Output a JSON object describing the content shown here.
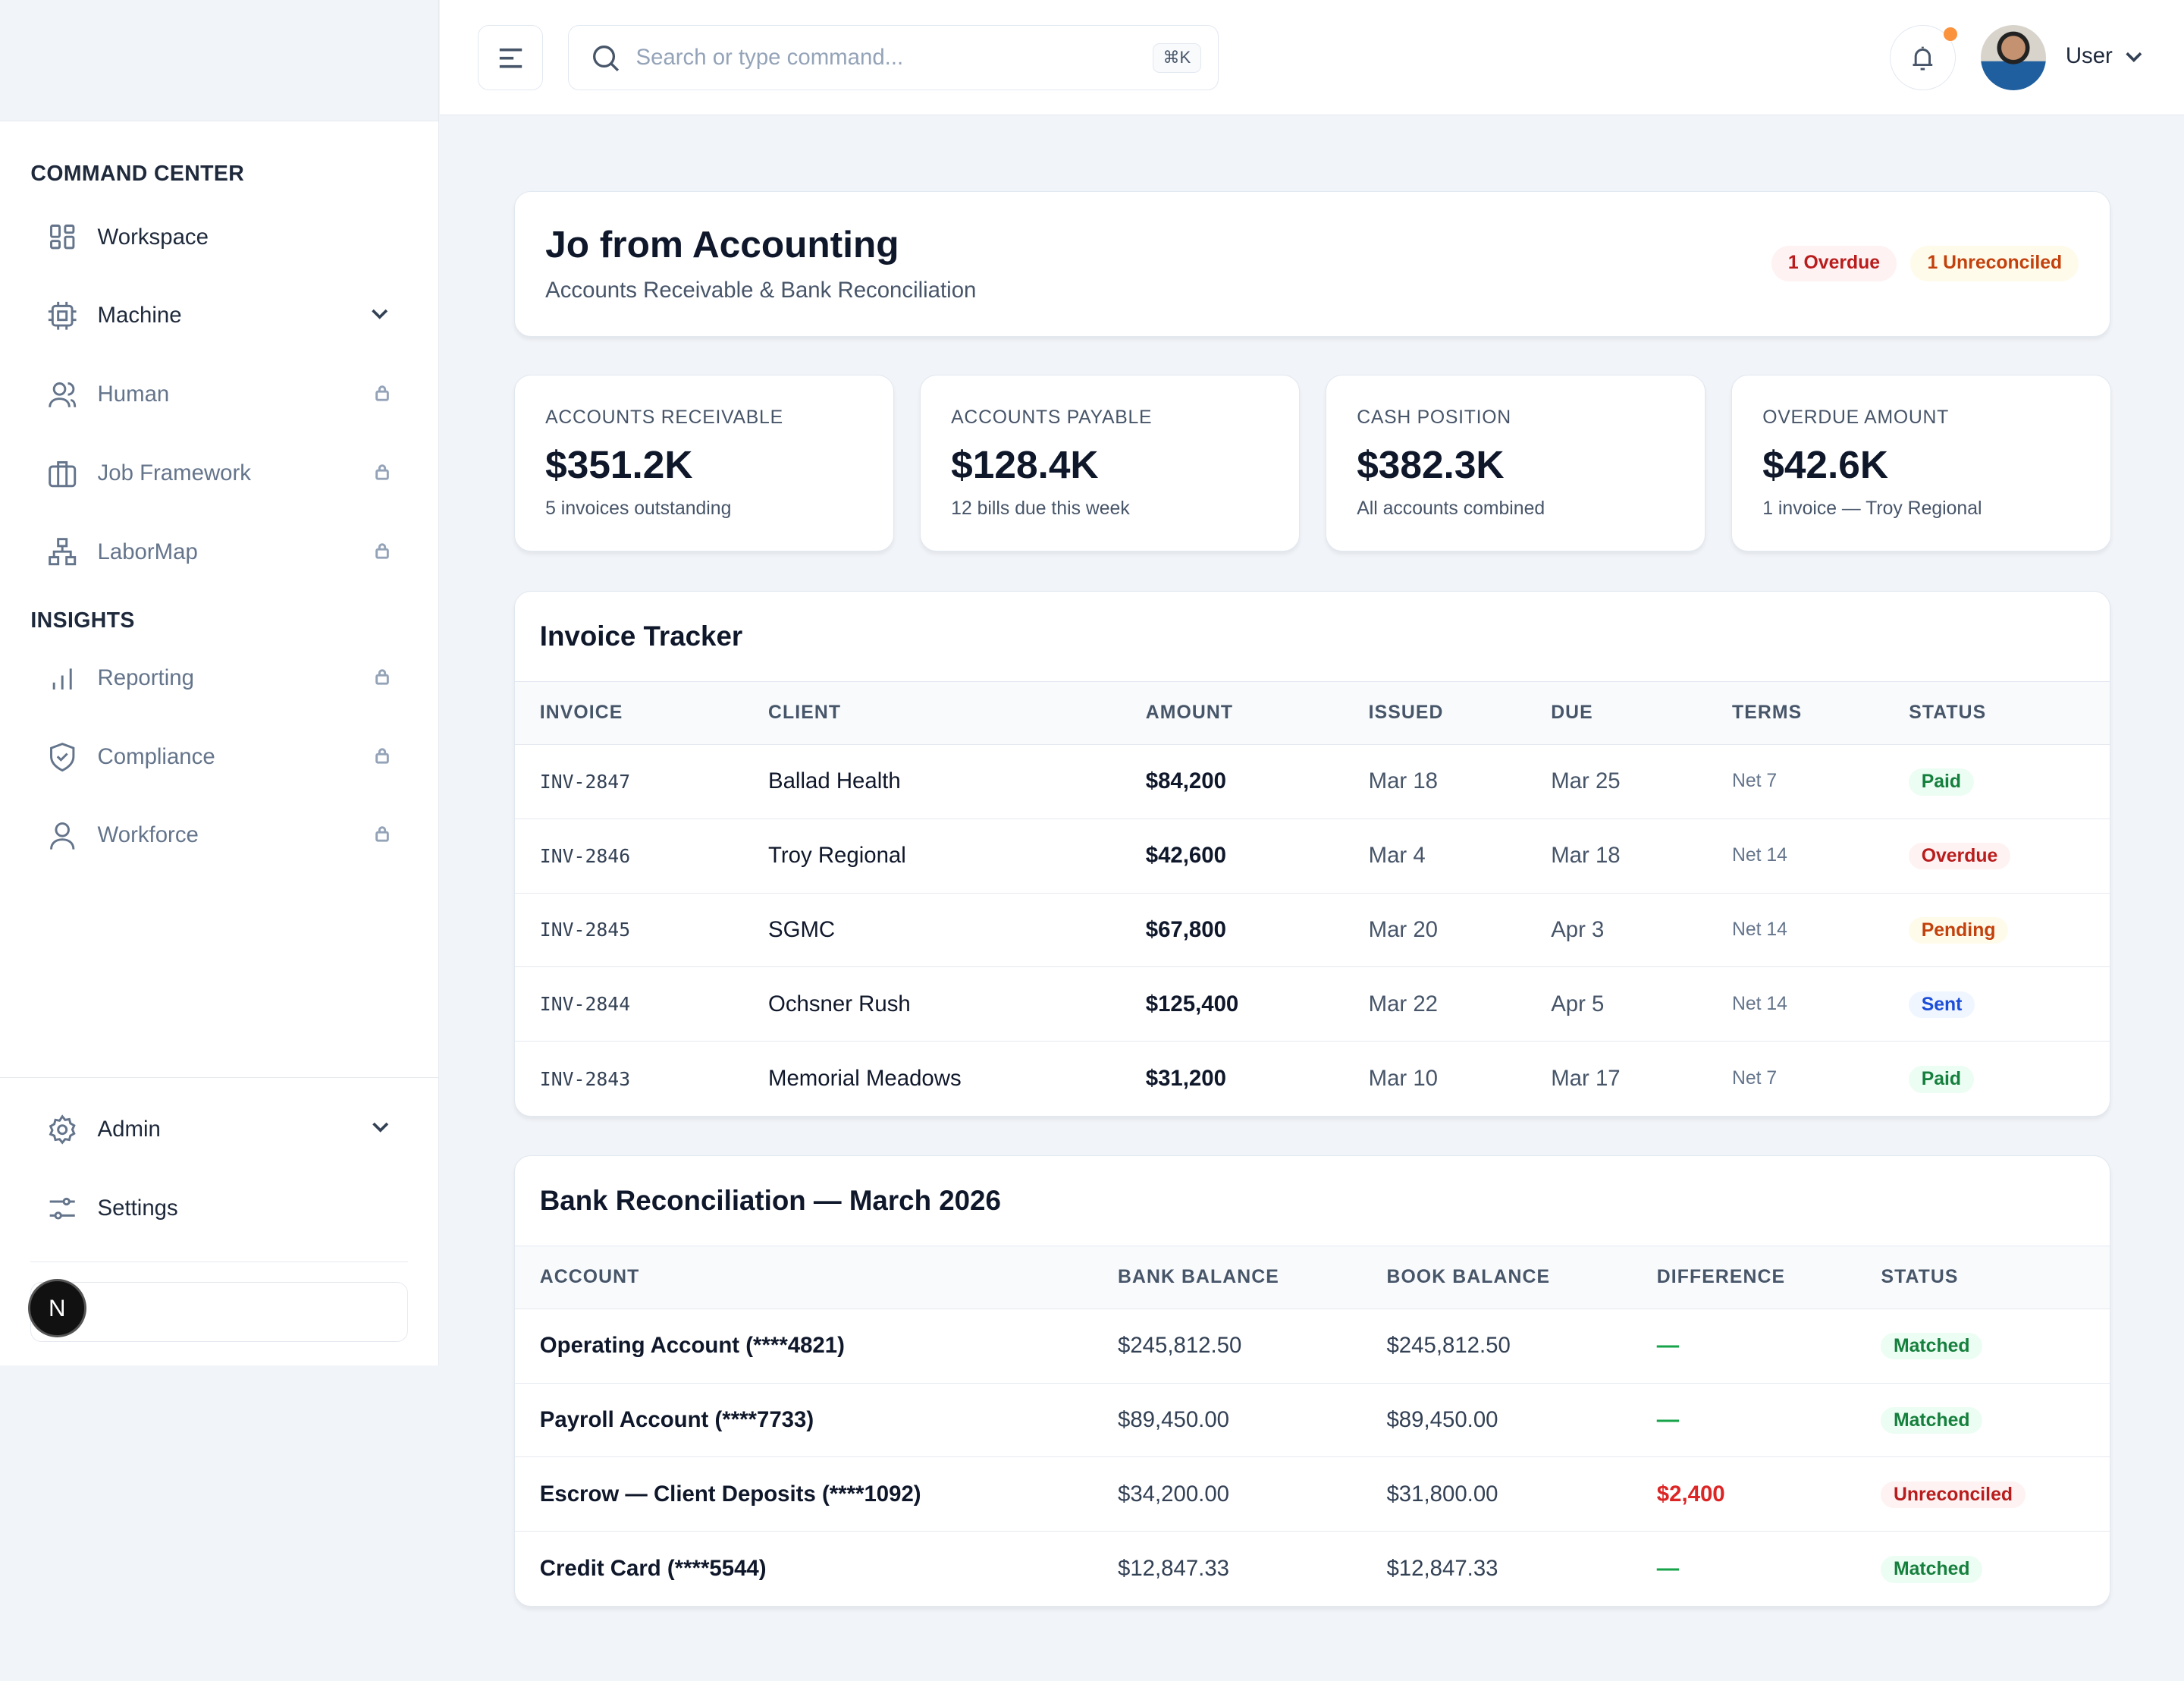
{
  "sidebar": {
    "sections": [
      {
        "title": "COMMAND CENTER"
      },
      {
        "title": "INSIGHTS"
      }
    ],
    "items": [
      {
        "label": "Workspace"
      },
      {
        "label": "Machine"
      },
      {
        "label": "Human"
      },
      {
        "label": "Job Framework"
      },
      {
        "label": "LaborMap"
      },
      {
        "label": "Reporting"
      },
      {
        "label": "Compliance"
      },
      {
        "label": "Workforce"
      },
      {
        "label": "Admin"
      },
      {
        "label": "Settings"
      }
    ],
    "avatar_letter": "N"
  },
  "header": {
    "search_placeholder": "Search or type command...",
    "shortcut": "⌘K",
    "user": "User"
  },
  "hero": {
    "title": "Jo from Accounting",
    "subtitle": "Accounts Receivable & Bank Reconciliation",
    "badges": [
      "1 Overdue",
      "1 Unreconciled"
    ]
  },
  "stats": [
    {
      "label": "ACCOUNTS RECEIVABLE",
      "value": "$351.2K",
      "desc": "5 invoices outstanding"
    },
    {
      "label": "ACCOUNTS PAYABLE",
      "value": "$128.4K",
      "desc": "12 bills due this week"
    },
    {
      "label": "CASH POSITION",
      "value": "$382.3K",
      "desc": "All accounts combined"
    },
    {
      "label": "OVERDUE AMOUNT",
      "value": "$42.6K",
      "desc": "1 invoice — Troy Regional"
    }
  ],
  "invoices": {
    "title": "Invoice Tracker",
    "headers": [
      "INVOICE",
      "CLIENT",
      "AMOUNT",
      "ISSUED",
      "DUE",
      "TERMS",
      "STATUS"
    ],
    "rows": [
      [
        "INV-2847",
        "Ballad Health",
        "$84,200",
        "Mar 18",
        "Mar 25",
        "Net 7",
        "Paid"
      ],
      [
        "INV-2846",
        "Troy Regional",
        "$42,600",
        "Mar 4",
        "Mar 18",
        "Net 14",
        "Overdue"
      ],
      [
        "INV-2845",
        "SGMC",
        "$67,800",
        "Mar 20",
        "Apr 3",
        "Net 14",
        "Pending"
      ],
      [
        "INV-2844",
        "Ochsner Rush",
        "$125,400",
        "Mar 22",
        "Apr 5",
        "Net 14",
        "Sent"
      ],
      [
        "INV-2843",
        "Memorial Meadows",
        "$31,200",
        "Mar 10",
        "Mar 17",
        "Net 7",
        "Paid"
      ]
    ]
  },
  "bank": {
    "title": "Bank Reconciliation — March 2026",
    "headers": [
      "ACCOUNT",
      "BANK BALANCE",
      "BOOK BALANCE",
      "DIFFERENCE",
      "STATUS"
    ],
    "rows": [
      [
        "Operating Account (****4821)",
        "$245,812.50",
        "$245,812.50",
        "—",
        "Matched"
      ],
      [
        "Payroll Account (****7733)",
        "$89,450.00",
        "$89,450.00",
        "—",
        "Matched"
      ],
      [
        "Escrow — Client Deposits (****1092)",
        "$34,200.00",
        "$31,800.00",
        "$2,400",
        "Unreconciled"
      ],
      [
        "Credit Card (****5544)",
        "$12,847.33",
        "$12,847.33",
        "—",
        "Matched"
      ]
    ]
  },
  "colors": {
    "Paid": [
      "#ecfdf3",
      "#15803d"
    ],
    "Matched": [
      "#ecfdf3",
      "#15803d"
    ],
    "Overdue": [
      "#fef2f2",
      "#b91c1c"
    ],
    "Unreconciled": [
      "#fef2f2",
      "#b91c1c"
    ],
    "Pending": [
      "#fffbeb",
      "#c2410c"
    ],
    "Sent": [
      "#eff6ff",
      "#1d4ed8"
    ]
  }
}
